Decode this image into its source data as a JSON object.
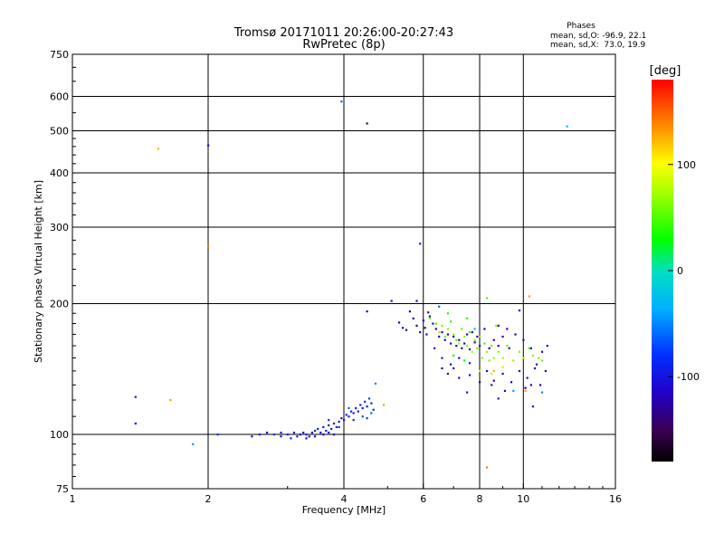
{
  "chart_data": {
    "type": "scatter",
    "title": "Tromsø 20171011 20:26:00-20:27:43",
    "subtitle": "RwPretec (8p)",
    "xlabel": "Frequency [MHz]",
    "ylabel": "Stationary phase Virtual Height [km]",
    "x_scale": "log",
    "y_scale": "log",
    "xlim": [
      1,
      16
    ],
    "ylim": [
      75,
      750
    ],
    "x_ticks": [
      1,
      2,
      4,
      6,
      8,
      10,
      16
    ],
    "y_ticks": [
      75,
      100,
      200,
      300,
      400,
      500,
      600,
      750
    ],
    "x_grid": [
      2,
      4,
      6,
      8,
      10
    ],
    "y_grid": [
      100,
      200,
      300,
      400,
      500,
      600
    ],
    "phases": {
      "title": "Phases",
      "o_line": "mean, sd,O: -96.9, 22.1",
      "x_line": "mean, sd,X:  73.0, 19.9"
    },
    "colorbar": {
      "label": "[deg]",
      "range": [
        -180,
        180
      ],
      "ticks": [
        100,
        0,
        -100
      ],
      "tick_labels": [
        "100",
        "0",
        "-100"
      ]
    },
    "points": [
      [
        1.38,
        122,
        -100
      ],
      [
        1.38,
        106,
        -110
      ],
      [
        1.55,
        455,
        125
      ],
      [
        1.65,
        120,
        130
      ],
      [
        1.85,
        95,
        -45
      ],
      [
        2.0,
        463,
        -115
      ],
      [
        2.0,
        272,
        140
      ],
      [
        2.1,
        100,
        -80
      ],
      [
        3.95,
        584,
        -60
      ],
      [
        4.5,
        520,
        -150
      ],
      [
        4.5,
        192,
        -130
      ],
      [
        4.7,
        131,
        -50
      ],
      [
        4.9,
        117,
        130
      ],
      [
        5.9,
        275,
        -90
      ],
      [
        5.8,
        203,
        -110
      ],
      [
        6.5,
        197,
        -60
      ],
      [
        8.3,
        84,
        140
      ],
      [
        8.3,
        206,
        50
      ],
      [
        8.6,
        140,
        125
      ],
      [
        10.3,
        208,
        130
      ],
      [
        10.1,
        126,
        130
      ],
      [
        12.5,
        512,
        -35
      ],
      [
        9.8,
        193,
        -120
      ],
      [
        10.5,
        116,
        -110
      ],
      [
        8.8,
        121,
        -100
      ],
      [
        7.5,
        125,
        -100
      ],
      [
        5.1,
        203,
        -110
      ],
      [
        5.3,
        181,
        -120
      ],
      [
        5.4,
        176,
        -105
      ],
      [
        5.5,
        174,
        -120
      ],
      [
        2.5,
        99,
        -100
      ],
      [
        2.6,
        100,
        -95
      ],
      [
        2.7,
        101,
        -105
      ],
      [
        2.8,
        100,
        -90
      ],
      [
        2.9,
        99,
        -100
      ],
      [
        3.0,
        100,
        -95
      ],
      [
        3.1,
        101,
        -100
      ],
      [
        3.15,
        99,
        -90
      ],
      [
        3.2,
        100,
        -110
      ],
      [
        3.25,
        101,
        -100
      ],
      [
        3.3,
        100,
        -95
      ],
      [
        3.35,
        99,
        -100
      ],
      [
        3.4,
        101,
        -105
      ],
      [
        3.45,
        102,
        -90
      ],
      [
        3.5,
        103,
        -100
      ],
      [
        3.55,
        101,
        -110
      ],
      [
        3.6,
        104,
        -95
      ],
      [
        3.65,
        102,
        -100
      ],
      [
        3.7,
        105,
        -105
      ],
      [
        3.75,
        103,
        -90
      ],
      [
        3.8,
        106,
        -100
      ],
      [
        3.85,
        104,
        -95
      ],
      [
        3.9,
        107,
        -100
      ],
      [
        3.95,
        109,
        -105
      ],
      [
        4.0,
        108,
        -100
      ],
      [
        4.05,
        111,
        -95
      ],
      [
        4.1,
        110,
        -100
      ],
      [
        4.15,
        113,
        -90
      ],
      [
        4.2,
        112,
        -100
      ],
      [
        4.25,
        115,
        -95
      ],
      [
        4.3,
        113,
        -100
      ],
      [
        4.35,
        117,
        -80
      ],
      [
        4.4,
        115,
        -95
      ],
      [
        4.45,
        119,
        -85
      ],
      [
        4.5,
        116,
        -100
      ],
      [
        4.55,
        121,
        -75
      ],
      [
        4.6,
        118,
        -90
      ],
      [
        4.65,
        114,
        -80
      ],
      [
        3.3,
        98,
        -110
      ],
      [
        3.45,
        99,
        -100
      ],
      [
        3.6,
        100,
        -110
      ],
      [
        3.7,
        101,
        -100
      ],
      [
        3.9,
        104,
        -90
      ],
      [
        4.2,
        108,
        -85
      ],
      [
        4.4,
        110,
        -70
      ],
      [
        4.6,
        112,
        -65
      ],
      [
        2.9,
        101,
        -95
      ],
      [
        3.05,
        98,
        -85
      ],
      [
        3.7,
        108,
        -80
      ],
      [
        4.1,
        115,
        -65
      ],
      [
        4.5,
        109,
        -75
      ],
      [
        3.8,
        100,
        -105
      ],
      [
        5.6,
        192,
        -130
      ],
      [
        5.7,
        185,
        -120
      ],
      [
        5.8,
        178,
        -130
      ],
      [
        5.9,
        172,
        -125
      ],
      [
        6.0,
        183,
        -115
      ],
      [
        6.05,
        176,
        -135
      ],
      [
        6.1,
        170,
        -120
      ],
      [
        6.2,
        187,
        -125
      ],
      [
        6.3,
        180,
        -115
      ],
      [
        6.4,
        175,
        -130
      ],
      [
        6.5,
        168,
        -120
      ],
      [
        6.6,
        172,
        -110
      ],
      [
        6.7,
        165,
        -115
      ],
      [
        6.8,
        170,
        -125
      ],
      [
        6.9,
        162,
        -110
      ],
      [
        7.0,
        168,
        -120
      ],
      [
        7.1,
        160,
        -115
      ],
      [
        7.2,
        165,
        -125
      ],
      [
        7.3,
        158,
        -110
      ],
      [
        7.4,
        162,
        -120
      ],
      [
        7.5,
        170,
        -130
      ],
      [
        7.6,
        157,
        -115
      ],
      [
        7.7,
        172,
        -120
      ],
      [
        7.8,
        163,
        -110
      ],
      [
        7.9,
        168,
        -125
      ],
      [
        8.0,
        160,
        -120
      ],
      [
        8.2,
        175,
        -115
      ],
      [
        8.4,
        158,
        -130
      ],
      [
        8.6,
        165,
        -120
      ],
      [
        8.8,
        160,
        -115
      ],
      [
        9.0,
        168,
        -125
      ],
      [
        9.3,
        158,
        -120
      ],
      [
        6.15,
        191,
        -110
      ],
      [
        6.35,
        158,
        -100
      ],
      [
        6.6,
        150,
        -100
      ],
      [
        6.9,
        145,
        -95
      ],
      [
        7.2,
        150,
        -110
      ],
      [
        7.6,
        146,
        -100
      ],
      [
        6.2,
        185,
        60
      ],
      [
        6.4,
        180,
        50
      ],
      [
        6.5,
        172,
        70
      ],
      [
        6.6,
        178,
        60
      ],
      [
        6.7,
        168,
        55
      ],
      [
        6.8,
        175,
        65
      ],
      [
        6.9,
        182,
        40
      ],
      [
        7.0,
        170,
        60
      ],
      [
        7.1,
        165,
        50
      ],
      [
        7.2,
        162,
        70
      ],
      [
        7.3,
        175,
        55
      ],
      [
        7.4,
        168,
        65
      ],
      [
        7.5,
        160,
        60
      ],
      [
        7.6,
        172,
        45
      ],
      [
        7.7,
        155,
        70
      ],
      [
        7.8,
        165,
        60
      ],
      [
        7.9,
        158,
        55
      ],
      [
        8.0,
        168,
        65
      ],
      [
        8.1,
        150,
        60
      ],
      [
        8.2,
        162,
        40
      ],
      [
        8.3,
        155,
        70
      ],
      [
        8.4,
        148,
        60
      ],
      [
        8.5,
        160,
        55
      ],
      [
        8.6,
        150,
        65
      ],
      [
        8.8,
        155,
        60
      ],
      [
        9.0,
        150,
        70
      ],
      [
        9.2,
        160,
        50
      ],
      [
        9.5,
        148,
        65
      ],
      [
        9.8,
        155,
        60
      ],
      [
        10.0,
        150,
        70
      ],
      [
        10.3,
        158,
        45
      ],
      [
        10.5,
        152,
        60
      ],
      [
        10.8,
        150,
        65
      ],
      [
        11.0,
        148,
        55
      ],
      [
        7.0,
        152,
        25
      ],
      [
        7.4,
        148,
        30
      ],
      [
        8.0,
        140,
        80
      ],
      [
        8.5,
        138,
        75
      ],
      [
        9.0,
        143,
        80
      ],
      [
        6.8,
        190,
        35
      ],
      [
        7.5,
        185,
        40
      ],
      [
        8.7,
        178,
        60
      ],
      [
        6.6,
        142,
        -125
      ],
      [
        6.8,
        138,
        -120
      ],
      [
        7.0,
        142,
        -110
      ],
      [
        7.2,
        135,
        -125
      ],
      [
        7.6,
        137,
        -115
      ],
      [
        8.0,
        132,
        -125
      ],
      [
        8.3,
        140,
        -110
      ],
      [
        8.6,
        133,
        -120
      ],
      [
        9.0,
        138,
        -125
      ],
      [
        9.4,
        132,
        -115
      ],
      [
        9.8,
        140,
        -120
      ],
      [
        10.2,
        135,
        -110
      ],
      [
        10.6,
        142,
        -125
      ],
      [
        11.0,
        155,
        -125
      ],
      [
        11.3,
        160,
        -115
      ],
      [
        10.4,
        158,
        -105
      ],
      [
        10.0,
        165,
        -110
      ],
      [
        9.6,
        170,
        -120
      ],
      [
        9.2,
        175,
        -115
      ],
      [
        8.8,
        178,
        -125
      ],
      [
        10.1,
        128,
        -130
      ],
      [
        10.4,
        130,
        -110
      ],
      [
        11.2,
        140,
        -115
      ],
      [
        10.9,
        130,
        -120
      ],
      [
        9.1,
        126,
        -120
      ],
      [
        8.5,
        130,
        -100
      ],
      [
        10.7,
        145,
        -100
      ],
      [
        11.0,
        125,
        -50
      ],
      [
        9.5,
        126,
        -40
      ],
      [
        7.8,
        175,
        -30
      ]
    ]
  }
}
